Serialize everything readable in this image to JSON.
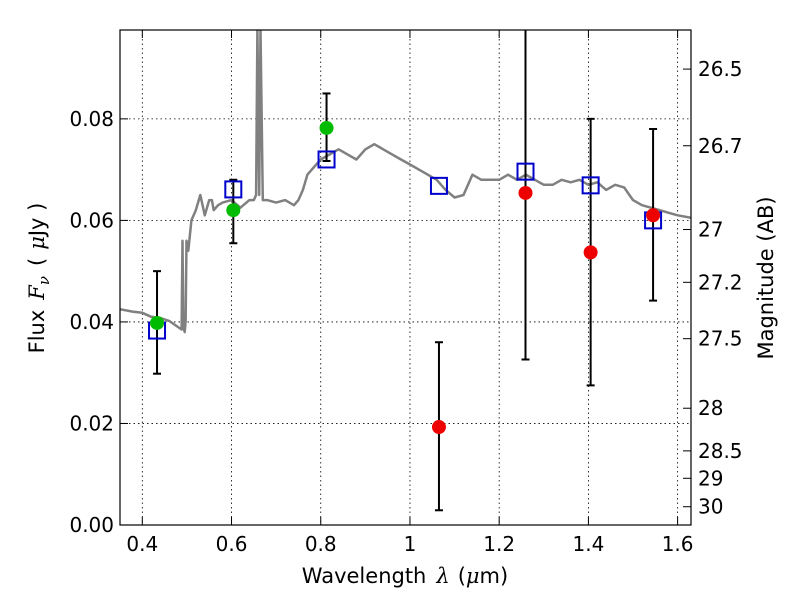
{
  "chart_data": {
    "type": "scatter",
    "title": "",
    "xlabel": "Wavelength",
    "xlabel_symbol": "λ",
    "xlabel_unit_open": "(",
    "xlabel_unit_mu": "μ",
    "xlabel_unit_rest": "m)",
    "ylabel": "Flux",
    "ylabel_symbol": "F",
    "ylabel_subscript": "ν",
    "ylabel_unit_open": "(",
    "ylabel_unit_mu": "μ",
    "ylabel_unit_rest": "Jy )",
    "y2label": "Magnitude (AB)",
    "xlim": [
      0.35,
      1.63
    ],
    "ylim": [
      0.0,
      0.0975
    ],
    "grid": true,
    "x_ticks": [
      {
        "value": 0.4,
        "label": "0.4"
      },
      {
        "value": 0.6,
        "label": "0.6"
      },
      {
        "value": 0.8,
        "label": "0.8"
      },
      {
        "value": 1.0,
        "label": "1"
      },
      {
        "value": 1.2,
        "label": "1.2"
      },
      {
        "value": 1.4,
        "label": "1.4"
      },
      {
        "value": 1.6,
        "label": "1.6"
      }
    ],
    "y_ticks": [
      {
        "value": 0.0,
        "label": "0.00"
      },
      {
        "value": 0.02,
        "label": "0.02"
      },
      {
        "value": 0.04,
        "label": "0.04"
      },
      {
        "value": 0.06,
        "label": "0.06"
      },
      {
        "value": 0.08,
        "label": "0.08"
      }
    ],
    "y2_ticks": [
      {
        "flux": 0.0898,
        "label": "26.5"
      },
      {
        "flux": 0.0747,
        "label": "26.7"
      },
      {
        "flux": 0.0582,
        "label": "27"
      },
      {
        "flux": 0.0478,
        "label": "27.2"
      },
      {
        "flux": 0.0367,
        "label": "27.5"
      },
      {
        "flux": 0.023,
        "label": "28"
      },
      {
        "flux": 0.0146,
        "label": "28.5"
      },
      {
        "flux": 0.0092,
        "label": "29"
      },
      {
        "flux": 0.0036,
        "label": "30"
      }
    ],
    "colors": {
      "spectrum": "#808080",
      "model": "#0000cc",
      "detection": "#00bb00",
      "upper": "#ee0000",
      "errorbar": "#000000"
    },
    "spectrum": {
      "x": [
        0.35,
        0.38,
        0.4,
        0.42,
        0.44,
        0.46,
        0.48,
        0.488,
        0.49,
        0.492,
        0.495,
        0.497,
        0.499,
        0.503,
        0.51,
        0.52,
        0.53,
        0.54,
        0.55,
        0.556,
        0.56,
        0.57,
        0.58,
        0.6,
        0.62,
        0.64,
        0.65,
        0.655,
        0.658,
        0.662,
        0.665,
        0.67,
        0.68,
        0.7,
        0.72,
        0.74,
        0.75,
        0.76,
        0.77,
        0.78,
        0.79,
        0.8,
        0.82,
        0.84,
        0.86,
        0.88,
        0.9,
        0.92,
        0.94,
        0.96,
        0.98,
        1.0,
        1.02,
        1.04,
        1.06,
        1.08,
        1.1,
        1.12,
        1.14,
        1.16,
        1.18,
        1.2,
        1.22,
        1.24,
        1.26,
        1.28,
        1.3,
        1.32,
        1.34,
        1.36,
        1.38,
        1.4,
        1.42,
        1.44,
        1.46,
        1.48,
        1.5,
        1.52,
        1.54,
        1.56,
        1.58,
        1.6,
        1.63
      ],
      "y": [
        0.0425,
        0.042,
        0.0418,
        0.041,
        0.0408,
        0.0402,
        0.039,
        0.0385,
        0.056,
        0.039,
        0.038,
        0.04,
        0.056,
        0.054,
        0.06,
        0.062,
        0.065,
        0.061,
        0.064,
        0.064,
        0.062,
        0.063,
        0.0635,
        0.064,
        0.0625,
        0.064,
        0.064,
        0.065,
        0.0975,
        0.065,
        0.0975,
        0.064,
        0.064,
        0.0635,
        0.064,
        0.063,
        0.064,
        0.066,
        0.069,
        0.07,
        0.071,
        0.072,
        0.073,
        0.074,
        0.073,
        0.072,
        0.074,
        0.075,
        0.074,
        0.073,
        0.072,
        0.071,
        0.07,
        0.069,
        0.068,
        0.066,
        0.0645,
        0.065,
        0.069,
        0.068,
        0.068,
        0.068,
        0.069,
        0.068,
        0.069,
        0.068,
        0.067,
        0.067,
        0.068,
        0.0675,
        0.068,
        0.067,
        0.0675,
        0.066,
        0.067,
        0.0665,
        0.064,
        0.063,
        0.0625,
        0.062,
        0.0615,
        0.061,
        0.0605
      ]
    },
    "model_points": {
      "x": [
        0.433,
        0.604,
        0.813,
        1.065,
        1.259,
        1.405,
        1.545
      ],
      "y": [
        0.0383,
        0.0661,
        0.072,
        0.0668,
        0.0696,
        0.0669,
        0.06
      ]
    },
    "detections": {
      "x": [
        0.433,
        0.604,
        0.813
      ],
      "y": [
        0.0398,
        0.062,
        0.0782
      ],
      "err_low": [
        0.01,
        0.0065,
        0.0065
      ],
      "err_high": [
        0.0102,
        0.006,
        0.0068
      ]
    },
    "upper_limits": {
      "x": [
        1.065,
        1.259,
        1.405,
        1.545
      ],
      "y": [
        0.0193,
        0.0654,
        0.0537,
        0.061
      ],
      "err_low": [
        0.0164,
        0.0328,
        0.0262,
        0.0168
      ],
      "err_high": [
        0.0167,
        0.0325,
        0.0263,
        0.017
      ]
    }
  }
}
